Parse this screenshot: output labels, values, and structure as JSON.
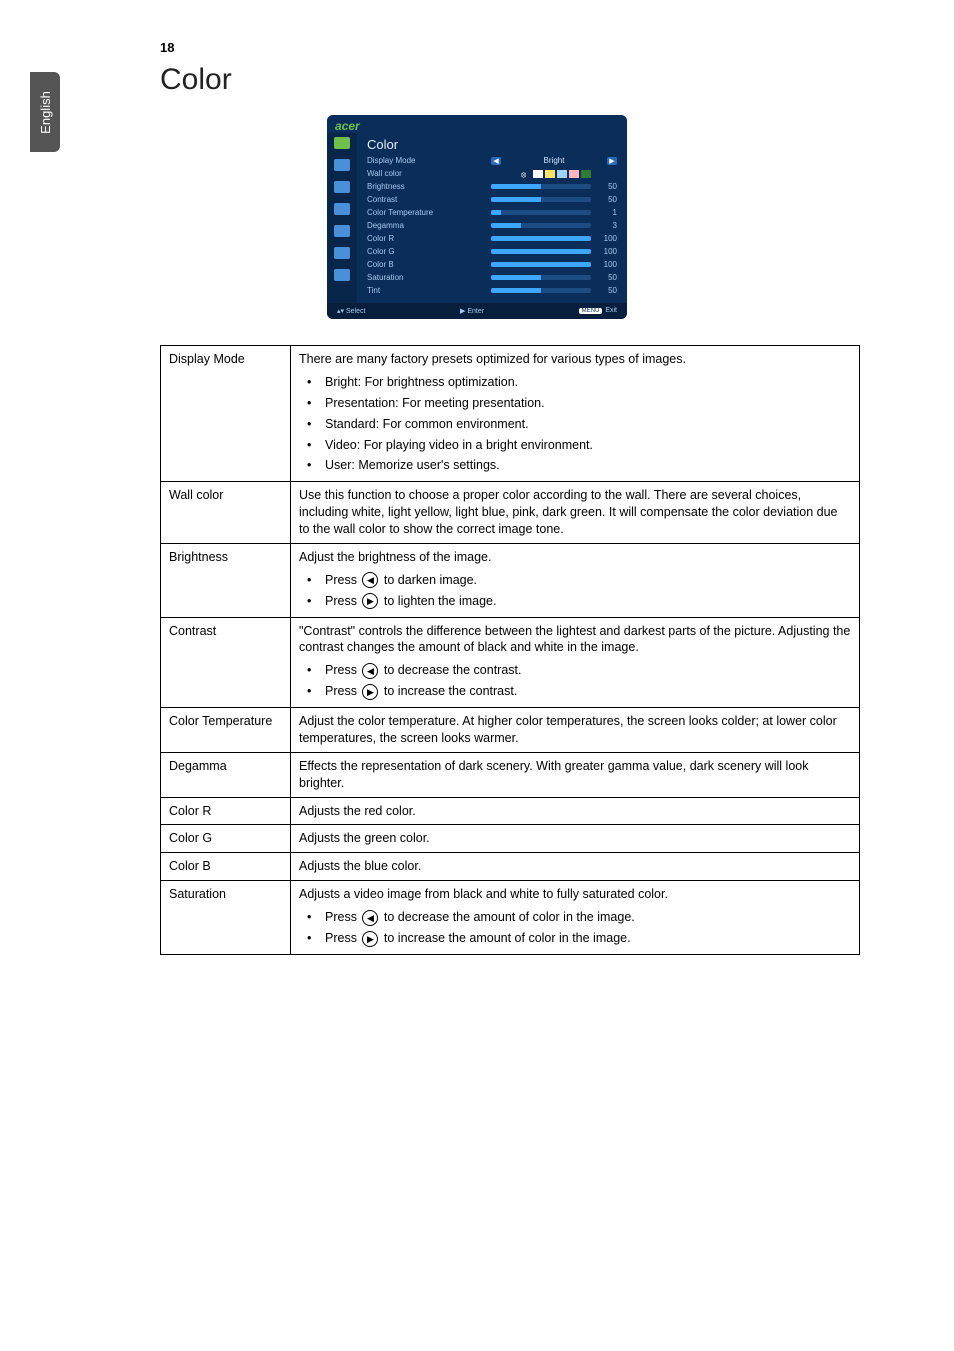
{
  "page_number": "18",
  "side_tab": "English",
  "section_title": "Color",
  "osd": {
    "brand": "acer",
    "heading": "Color",
    "rows": [
      {
        "label": "Display Mode",
        "type": "select",
        "value": "Bright"
      },
      {
        "label": "Wall color",
        "type": "swatch"
      },
      {
        "label": "Brightness",
        "type": "slider",
        "value": 50,
        "max": 100
      },
      {
        "label": "Contrast",
        "type": "slider",
        "value": 50,
        "max": 100
      },
      {
        "label": "Color Temperature",
        "type": "slider",
        "value": 10,
        "max": 100,
        "display": "1"
      },
      {
        "label": "Degamma",
        "type": "slider",
        "value": 30,
        "max": 100,
        "display": "3"
      },
      {
        "label": "Color R",
        "type": "slider",
        "value": 100,
        "max": 100
      },
      {
        "label": "Color G",
        "type": "slider",
        "value": 100,
        "max": 100
      },
      {
        "label": "Color B",
        "type": "slider",
        "value": 100,
        "max": 100
      },
      {
        "label": "Saturation",
        "type": "slider",
        "value": 50,
        "max": 100
      },
      {
        "label": "Tint",
        "type": "slider",
        "value": 50,
        "max": 100
      }
    ],
    "swatch_colors": [
      "#ffffff",
      "#ffe06a",
      "#9fd2ff",
      "#ffb6c1",
      "#2e7d32"
    ],
    "footer": {
      "select": "Select",
      "enter": "Enter",
      "menu_btn": "MENU",
      "exit": "Exit"
    },
    "colors": {
      "panel_bg": "#0a2d5a",
      "panel_side": "#08254a",
      "bar_bg": "#1d4b84",
      "bar_fill": "#3da6ff",
      "text": "#a9c8ef",
      "brand": "#6fc04a"
    }
  },
  "arrows": {
    "left": "◀",
    "right": "▶"
  },
  "table": [
    {
      "term": "Display Mode",
      "body": "There are many factory presets optimized for various types of images.",
      "bullets": [
        "Bright: For brightness optimization.",
        "Presentation: For meeting presentation.",
        "Standard: For common environment.",
        "Video: For playing video in a bright environment.",
        "User: Memorize user's settings."
      ]
    },
    {
      "term": "Wall color",
      "body": "Use this function to choose a proper color according to the wall. There are several choices, including white, light yellow, light blue, pink, dark green. It will compensate the color deviation due to the wall color to show the correct image tone."
    },
    {
      "term": "Brightness",
      "body": "Adjust the brightness of the image.",
      "arrow_bullets": [
        {
          "prefix": "Press ",
          "dir": "left",
          "suffix": " to darken image."
        },
        {
          "prefix": "Press ",
          "dir": "right",
          "suffix": " to lighten the image."
        }
      ]
    },
    {
      "term": "Contrast",
      "body": "\"Contrast\" controls the difference between the lightest and darkest parts of the picture. Adjusting the contrast changes the amount of black and white in the image.",
      "arrow_bullets": [
        {
          "prefix": "Press ",
          "dir": "left",
          "suffix": " to decrease the contrast."
        },
        {
          "prefix": "Press ",
          "dir": "right",
          "suffix": " to increase the contrast."
        }
      ]
    },
    {
      "term": "Color Temperature",
      "body": "Adjust the color temperature. At higher color temperatures, the screen looks colder; at lower color temperatures, the screen looks warmer."
    },
    {
      "term": "Degamma",
      "body": "Effects the representation of dark scenery. With greater gamma value, dark scenery will look brighter."
    },
    {
      "term": "Color R",
      "body": "Adjusts the red color."
    },
    {
      "term": "Color G",
      "body": "Adjusts the green color."
    },
    {
      "term": "Color B",
      "body": "Adjusts the blue color."
    },
    {
      "term": "Saturation",
      "body": "Adjusts a video image from black and white to fully saturated color.",
      "arrow_bullets": [
        {
          "prefix": "Press ",
          "dir": "left",
          "suffix": " to decrease the amount of color in the image."
        },
        {
          "prefix": "Press ",
          "dir": "right",
          "suffix": " to increase the amount of color in the image."
        }
      ]
    }
  ]
}
